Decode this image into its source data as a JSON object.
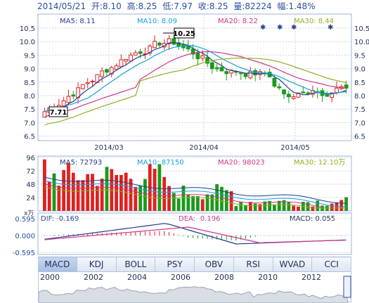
{
  "header": {
    "date": "2014/05/21",
    "open": "开:8.10",
    "high": "高:8.25",
    "low": "低:7.97",
    "close": "收:8.25",
    "volume": "量:82224",
    "change": "幅:1.48%"
  },
  "price_panel": {
    "ma_labels": [
      {
        "text": "MA5: 8.11",
        "color": "#1f3f8a"
      },
      {
        "text": "MA10: 8.09",
        "color": "#1aa1d8"
      },
      {
        "text": "MA20: 8.22",
        "color": "#d0368a"
      },
      {
        "text": "MA30: 8.44",
        "color": "#8fb020"
      }
    ],
    "y_ticks": [
      "10.5",
      "10.0",
      "9.5",
      "9.0",
      "8.5",
      "8.0",
      "7.5",
      "7.0",
      "6.5"
    ],
    "x_ticks": [
      "2014/03",
      "2014/04",
      "2014/05"
    ],
    "high_marker": "10.25",
    "low_marker": "7.71"
  },
  "volume_panel": {
    "ma_labels": [
      {
        "text": "MA5: 72793",
        "color": "#1f3f8a"
      },
      {
        "text": "MA10: 87150",
        "color": "#1aa1d8"
      },
      {
        "text": "MA20: 98023",
        "color": "#d0368a"
      },
      {
        "text": "MA30: 12.10万",
        "color": "#8fb020"
      }
    ],
    "y_ticks": [
      "96",
      "72",
      "48",
      "24"
    ],
    "unit": "x万"
  },
  "macd_panel": {
    "dif": "DIF: -0.169",
    "dea": "DEA: -0.196",
    "macd": "MACD: 0.055",
    "y_ticks": [
      "0.595",
      "0.000",
      "-0.595"
    ]
  },
  "tabs": [
    "MACD",
    "KDJ",
    "BOLL",
    "PSY",
    "OBV",
    "RSI",
    "WVAD",
    "CCI"
  ],
  "timeline_years": [
    "2000",
    "2002",
    "2004",
    "2006",
    "2008",
    "2010",
    "2012"
  ],
  "colors": {
    "up": "#e02020",
    "down": "#1a9b1a",
    "grid": "#c9d3e6",
    "axis": "#1f2f55"
  }
}
